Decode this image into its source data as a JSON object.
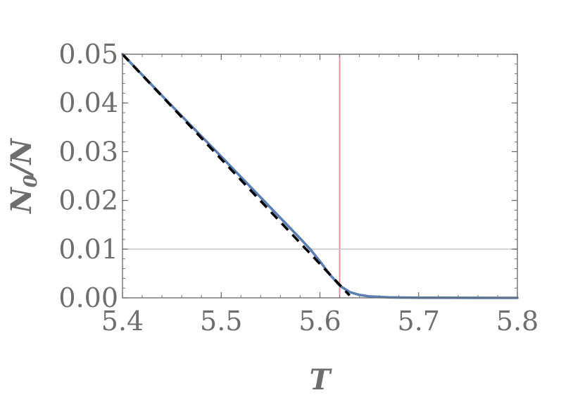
{
  "chart_data": {
    "type": "line",
    "title": "",
    "xlabel": "T",
    "ylabel": {
      "main": "N",
      "sub": "0",
      "rest": "/N"
    },
    "xlim": [
      5.4,
      5.8
    ],
    "ylim": [
      0.0,
      0.05
    ],
    "x_ticks": [
      "5.4",
      "5.5",
      "5.6",
      "5.7",
      "5.8"
    ],
    "y_ticks": [
      "0.00",
      "0.01",
      "0.02",
      "0.03",
      "0.04",
      "0.05"
    ],
    "x_tick_values": [
      5.4,
      5.5,
      5.6,
      5.7,
      5.8
    ],
    "y_tick_values": [
      0.0,
      0.01,
      0.02,
      0.03,
      0.04,
      0.05
    ],
    "grid": false,
    "reference_lines": [
      {
        "orientation": "vertical",
        "value": 5.62,
        "color": "#f08a96"
      },
      {
        "orientation": "horizontal",
        "value": 0.01,
        "color": "#c8c8c8"
      }
    ],
    "series": [
      {
        "style": "solid",
        "color": "#5b7fb5",
        "x": [
          5.4,
          5.45,
          5.5,
          5.55,
          5.58,
          5.59,
          5.6,
          5.61,
          5.62,
          5.63,
          5.64,
          5.65,
          5.67,
          5.7,
          5.75,
          5.8
        ],
        "y": [
          0.05,
          0.0394,
          0.029,
          0.0185,
          0.0122,
          0.01,
          0.0075,
          0.0048,
          0.0025,
          0.0012,
          0.0006,
          0.0003,
          0.0001,
          3e-05,
          1e-05,
          0.0
        ]
      },
      {
        "style": "dashed",
        "color": "#000000",
        "x": [
          5.4,
          5.63
        ],
        "y": [
          0.05,
          0.0005
        ]
      }
    ]
  }
}
